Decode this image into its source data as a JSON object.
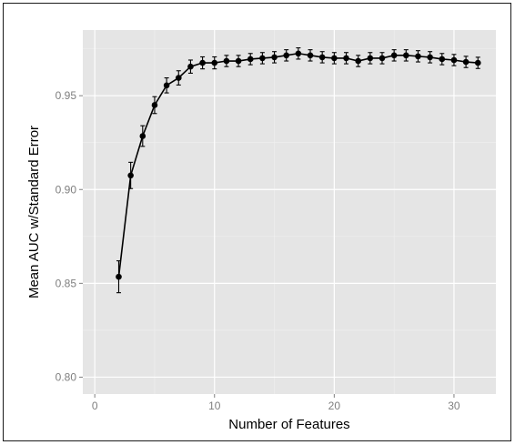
{
  "chart_data": {
    "type": "line",
    "title": "",
    "xlabel": "Number of Features",
    "ylabel": "Mean AUC w/Standard Error",
    "xlim": [
      -1,
      33.5
    ],
    "ylim": [
      0.791,
      0.985
    ],
    "x_ticks": [
      0,
      10,
      20,
      30
    ],
    "x_tick_labels": [
      "0",
      "10",
      "20",
      "30"
    ],
    "y_ticks": [
      0.8,
      0.85,
      0.9,
      0.95
    ],
    "y_tick_labels": [
      "0.80",
      "0.85",
      "0.90",
      "0.95"
    ],
    "grid": true,
    "legend": "none",
    "colors": {
      "panel": "#e5e5e5",
      "grid_major": "#ffffff",
      "grid_minor": "#f0f0f0",
      "line": "#000000",
      "tick_text": "#7f7f7f"
    },
    "series": [
      {
        "x": [
          2,
          3,
          4,
          5,
          6,
          7,
          8,
          9,
          10,
          11,
          12,
          13,
          14,
          15,
          16,
          17,
          18,
          19,
          20,
          21,
          22,
          23,
          24,
          25,
          26,
          27,
          28,
          29,
          30,
          31,
          32
        ],
        "values": [
          0.8535,
          0.9075,
          0.9285,
          0.945,
          0.9555,
          0.9595,
          0.9655,
          0.9675,
          0.9675,
          0.9685,
          0.9685,
          0.9695,
          0.97,
          0.9705,
          0.9715,
          0.9725,
          0.9715,
          0.9705,
          0.97,
          0.97,
          0.9685,
          0.97,
          0.97,
          0.9715,
          0.9715,
          0.971,
          0.9705,
          0.9695,
          0.969,
          0.968,
          0.9675
        ],
        "error": [
          0.0085,
          0.007,
          0.0055,
          0.0045,
          0.004,
          0.0038,
          0.0035,
          0.0032,
          0.0032,
          0.003,
          0.003,
          0.003,
          0.003,
          0.003,
          0.003,
          0.003,
          0.003,
          0.003,
          0.003,
          0.003,
          0.003,
          0.003,
          0.003,
          0.003,
          0.003,
          0.003,
          0.003,
          0.003,
          0.003,
          0.003,
          0.003
        ]
      }
    ]
  }
}
